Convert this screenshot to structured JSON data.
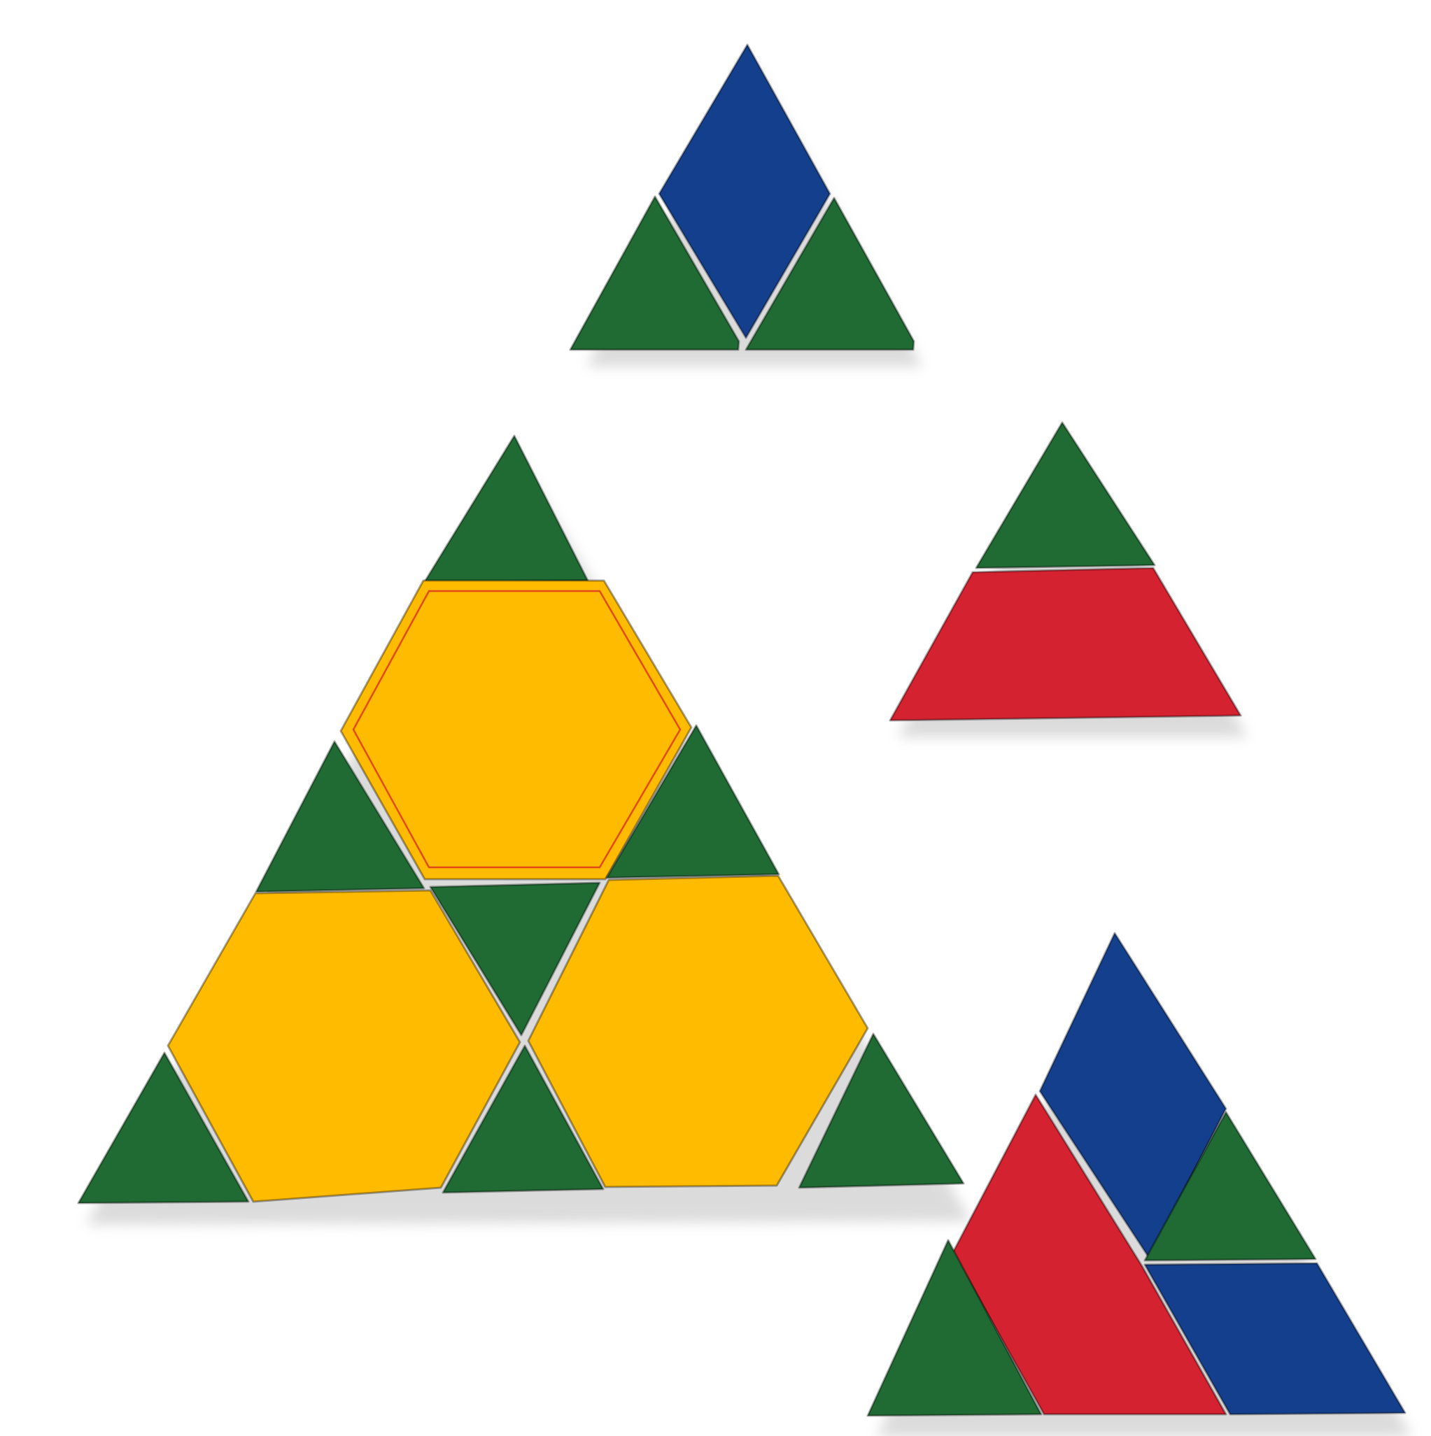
{
  "colors": {
    "background": "#ffffff",
    "green": "#1f6b33",
    "yellow": "#ffbb00",
    "blue": "#143f8c",
    "red": "#d42230",
    "shadow": "#9a9a9a"
  },
  "scene": {
    "groups": [
      {
        "name": "small-triangle-top",
        "pieces": [
          {
            "name": "blue-rhombus",
            "shape": "rhombus",
            "color": "blue"
          },
          {
            "name": "green-triangle-left",
            "shape": "triangle",
            "color": "green"
          },
          {
            "name": "green-triangle-right",
            "shape": "triangle",
            "color": "green"
          }
        ]
      },
      {
        "name": "large-triangle-left",
        "pieces": [
          {
            "name": "green-triangle-apex",
            "shape": "triangle",
            "color": "green"
          },
          {
            "name": "yellow-hexagon-top",
            "shape": "hexagon",
            "color": "yellow"
          },
          {
            "name": "green-triangle-mid-left",
            "shape": "triangle",
            "color": "green"
          },
          {
            "name": "green-triangle-mid-right",
            "shape": "triangle",
            "color": "green"
          },
          {
            "name": "green-triangle-center",
            "shape": "triangle",
            "color": "green"
          },
          {
            "name": "yellow-hexagon-bottom-left",
            "shape": "hexagon",
            "color": "yellow"
          },
          {
            "name": "yellow-hexagon-bottom-right",
            "shape": "hexagon",
            "color": "yellow"
          },
          {
            "name": "green-triangle-bottom-left",
            "shape": "triangle",
            "color": "green"
          },
          {
            "name": "green-triangle-bottom-center",
            "shape": "triangle",
            "color": "green"
          },
          {
            "name": "green-triangle-bottom-right",
            "shape": "triangle",
            "color": "green"
          }
        ]
      },
      {
        "name": "small-triangle-right",
        "pieces": [
          {
            "name": "green-triangle-top",
            "shape": "triangle",
            "color": "green"
          },
          {
            "name": "red-trapezoid",
            "shape": "trapezoid",
            "color": "red"
          }
        ]
      },
      {
        "name": "medium-triangle-bottom-right",
        "pieces": [
          {
            "name": "blue-rhombus-top",
            "shape": "rhombus",
            "color": "blue"
          },
          {
            "name": "green-triangle-inner",
            "shape": "triangle",
            "color": "green"
          },
          {
            "name": "blue-rhombus-bottom",
            "shape": "rhombus",
            "color": "blue"
          },
          {
            "name": "red-trapezoid",
            "shape": "trapezoid",
            "color": "red"
          },
          {
            "name": "green-triangle-left",
            "shape": "triangle",
            "color": "green"
          }
        ]
      }
    ]
  }
}
